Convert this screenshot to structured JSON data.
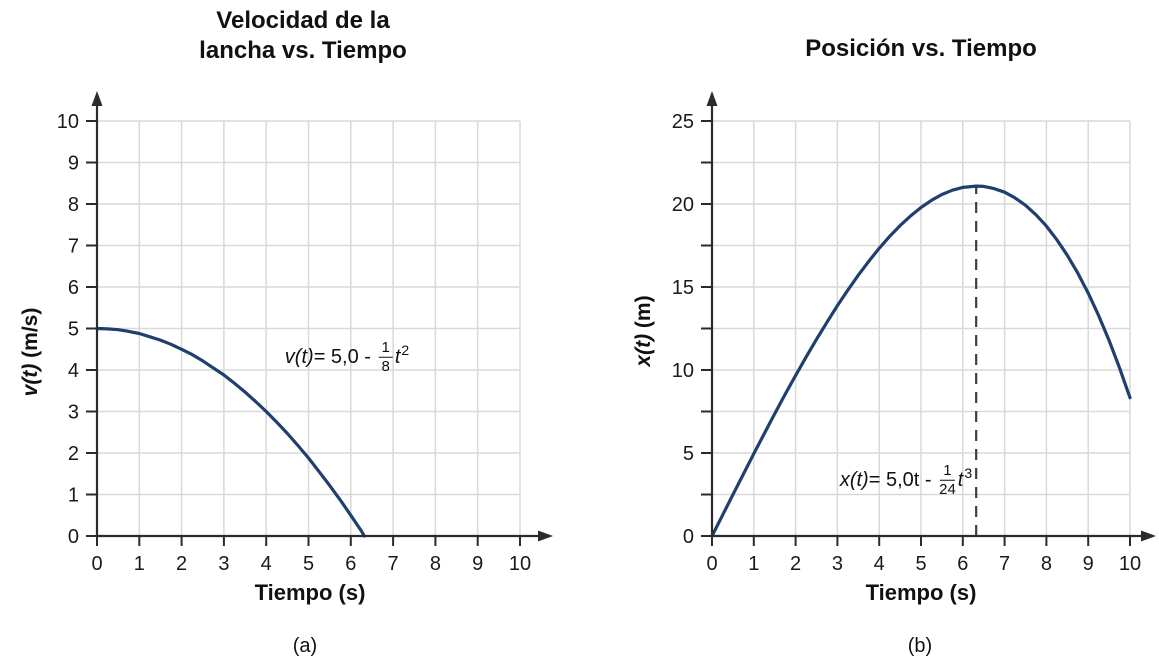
{
  "colors": {
    "curve": "#1f3f6e",
    "grid": "#d9d9d9",
    "axis": "#2b2b2b",
    "guide": "#3f3f3f",
    "text": "#111111"
  },
  "chart_data": [
    {
      "id": "a",
      "type": "line",
      "title": "Velocidad de la lancha vs. Tiempo",
      "title_lines": [
        "Velocidad de la",
        "lancha vs. Tiempo"
      ],
      "xlabel": "Tiempo (s)",
      "ylabel": "v(t) (m/s)",
      "ylabel_parts": {
        "func": "v(t)",
        "unit": " (m/s)"
      },
      "sublabel": "(a)",
      "xlim": [
        0,
        10
      ],
      "ylim": [
        0,
        10
      ],
      "grid": true,
      "legend": "none",
      "x_ticks": [
        0,
        1,
        2,
        3,
        4,
        5,
        6,
        7,
        8,
        9,
        10
      ],
      "x_tick_labels": [
        "0",
        "1",
        "2",
        "3",
        "4",
        "5",
        "6",
        "7",
        "8",
        "9",
        "10"
      ],
      "y_ticks": [
        0,
        1,
        2,
        3,
        4,
        5,
        6,
        7,
        8,
        9,
        10
      ],
      "y_tick_labels": [
        "0",
        "1",
        "2",
        "3",
        "4",
        "5",
        "6",
        "7",
        "8",
        "9",
        "10"
      ],
      "equation": {
        "func": "v(t)",
        "mid": "= 5,0 - ",
        "num": "1",
        "den": "8",
        "var": "t",
        "exp": "2"
      },
      "series": [
        {
          "name": "v(t) = 5,0 - (1/8)t^2",
          "color": "#1f3f6e",
          "points": [
            [
              0,
              5
            ],
            [
              0.25,
              4.99
            ],
            [
              0.5,
              4.97
            ],
            [
              0.75,
              4.93
            ],
            [
              1,
              4.88
            ],
            [
              1.25,
              4.8
            ],
            [
              1.5,
              4.72
            ],
            [
              1.75,
              4.62
            ],
            [
              2,
              4.5
            ],
            [
              2.25,
              4.37
            ],
            [
              2.5,
              4.22
            ],
            [
              2.75,
              4.05
            ],
            [
              3,
              3.88
            ],
            [
              3.25,
              3.68
            ],
            [
              3.5,
              3.47
            ],
            [
              3.75,
              3.24
            ],
            [
              4,
              3
            ],
            [
              4.25,
              2.74
            ],
            [
              4.5,
              2.47
            ],
            [
              4.75,
              2.18
            ],
            [
              5,
              1.88
            ],
            [
              5.25,
              1.55
            ],
            [
              5.5,
              1.22
            ],
            [
              5.75,
              0.87
            ],
            [
              6,
              0.5
            ],
            [
              6.25,
              0.12
            ],
            [
              6.32,
              0
            ]
          ]
        }
      ]
    },
    {
      "id": "b",
      "type": "line",
      "title": "Posición vs. Tiempo",
      "title_lines": [
        "Posición vs. Tiempo"
      ],
      "xlabel": "Tiempo (s)",
      "ylabel": "x(t) (m)",
      "ylabel_parts": {
        "func": "x(t)",
        "unit": " (m)"
      },
      "sublabel": "(b)",
      "xlim": [
        0,
        10
      ],
      "ylim": [
        0,
        25
      ],
      "grid": true,
      "legend": "none",
      "x_ticks": [
        0,
        1,
        2,
        3,
        4,
        5,
        6,
        7,
        8,
        9,
        10
      ],
      "x_tick_labels": [
        "0",
        "1",
        "2",
        "3",
        "4",
        "5",
        "6",
        "7",
        "8",
        "9",
        "10"
      ],
      "y_ticks": [
        0,
        2.5,
        5,
        7.5,
        10,
        12.5,
        15,
        17.5,
        20,
        22.5,
        25
      ],
      "y_tick_labels": [
        "0",
        "",
        "5",
        "",
        "10",
        "",
        "15",
        "",
        "20",
        "",
        "25"
      ],
      "equation": {
        "func": "x(t)",
        "mid": "= 5,0t - ",
        "num": "1",
        "den": "24",
        "var": "t",
        "exp": "3"
      },
      "guide_line": {
        "x": 6.32,
        "y_top": 21.08,
        "style": "dashed"
      },
      "series": [
        {
          "name": "x(t) = 5,0t - (1/24)t^3",
          "color": "#1f3f6e",
          "points": [
            [
              0,
              0
            ],
            [
              0.25,
              1.25
            ],
            [
              0.5,
              2.49
            ],
            [
              0.75,
              3.73
            ],
            [
              1,
              4.96
            ],
            [
              1.25,
              6.17
            ],
            [
              1.5,
              7.36
            ],
            [
              1.75,
              8.53
            ],
            [
              2,
              9.67
            ],
            [
              2.25,
              10.77
            ],
            [
              2.5,
              11.85
            ],
            [
              2.75,
              12.88
            ],
            [
              3,
              13.88
            ],
            [
              3.25,
              14.82
            ],
            [
              3.5,
              15.71
            ],
            [
              3.75,
              16.55
            ],
            [
              4,
              17.33
            ],
            [
              4.25,
              18.05
            ],
            [
              4.5,
              18.7
            ],
            [
              4.75,
              19.28
            ],
            [
              5,
              19.79
            ],
            [
              5.25,
              20.22
            ],
            [
              5.5,
              20.57
            ],
            [
              5.75,
              20.83
            ],
            [
              6,
              21
            ],
            [
              6.32,
              21.08
            ],
            [
              6.5,
              21.06
            ],
            [
              6.75,
              20.93
            ],
            [
              7,
              20.71
            ],
            [
              7.25,
              20.37
            ],
            [
              7.5,
              19.92
            ],
            [
              7.75,
              19.35
            ],
            [
              8,
              18.67
            ],
            [
              8.25,
              17.85
            ],
            [
              8.5,
              16.91
            ],
            [
              8.75,
              15.84
            ],
            [
              9,
              14.63
            ],
            [
              9.25,
              13.27
            ],
            [
              9.5,
              11.78
            ],
            [
              9.75,
              10.13
            ],
            [
              10,
              8.33
            ]
          ]
        }
      ]
    }
  ]
}
